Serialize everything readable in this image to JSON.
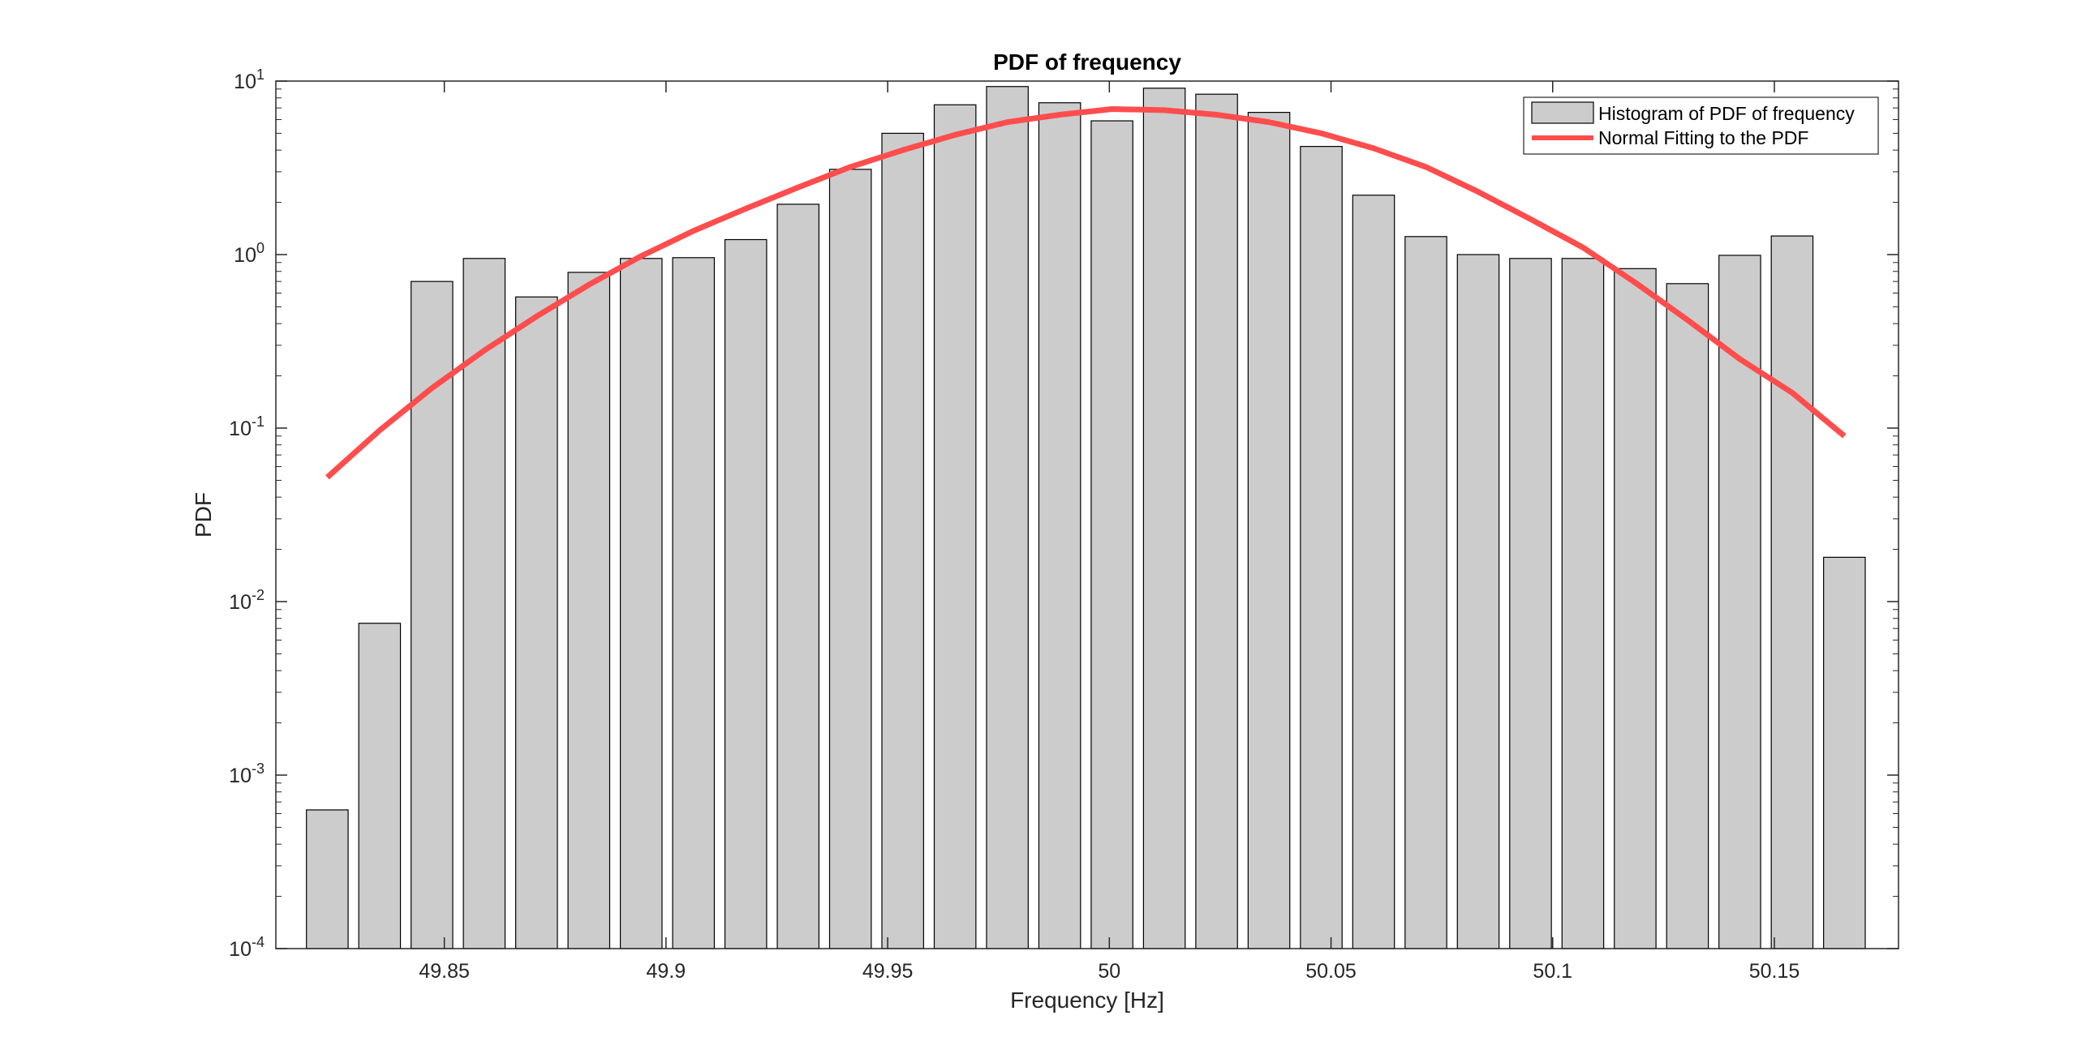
{
  "chart_data": {
    "type": "bar",
    "title": "PDF of frequency",
    "xlabel": "Frequency [Hz]",
    "ylabel": "PDF",
    "yscale": "log",
    "ylim": [
      0.0001,
      10
    ],
    "xlim": [
      49.812,
      50.178
    ],
    "grid": false,
    "legend_position": "top-right",
    "y_ticks": [
      {
        "value": 0.0001,
        "base": "10",
        "exp": "-4"
      },
      {
        "value": 0.001,
        "base": "10",
        "exp": "-3"
      },
      {
        "value": 0.01,
        "base": "10",
        "exp": "-2"
      },
      {
        "value": 0.1,
        "base": "10",
        "exp": "-1"
      },
      {
        "value": 1,
        "base": "10",
        "exp": "0"
      },
      {
        "value": 10,
        "base": "10",
        "exp": "1"
      }
    ],
    "x_ticks": [
      {
        "value": 49.85,
        "label": "49.85"
      },
      {
        "value": 49.9,
        "label": "49.9"
      },
      {
        "value": 49.95,
        "label": "49.95"
      },
      {
        "value": 50.0,
        "label": "50"
      },
      {
        "value": 50.05,
        "label": "50.05"
      },
      {
        "value": 50.1,
        "label": "50.1"
      },
      {
        "value": 50.15,
        "label": "50.15"
      }
    ],
    "bar_width": 0.0094,
    "colors": {
      "bars": "#cccccc",
      "bar_edge": "#000000",
      "fit": "#ff4d4d"
    },
    "series": [
      {
        "name": "Histogram of PDF of frequency",
        "type": "bar",
        "x": [
          49.8236,
          49.8354,
          49.8472,
          49.859,
          49.8708,
          49.8826,
          49.8944,
          49.9062,
          49.918,
          49.9298,
          49.9416,
          49.9534,
          49.9652,
          49.977,
          49.9888,
          50.0006,
          50.0124,
          50.0242,
          50.036,
          50.0478,
          50.0596,
          50.0714,
          50.0832,
          50.095,
          50.1068,
          50.1186,
          50.1304,
          50.1422,
          50.154,
          50.1658
        ],
        "values": [
          0.00063,
          0.0075,
          0.7,
          0.95,
          0.57,
          0.79,
          0.95,
          0.96,
          1.22,
          1.95,
          3.1,
          5.0,
          7.3,
          9.3,
          7.5,
          5.9,
          9.1,
          8.4,
          6.6,
          4.2,
          2.2,
          1.27,
          1.0,
          0.95,
          0.95,
          0.83,
          0.68,
          0.99,
          1.28,
          0.018
        ]
      },
      {
        "name": "Normal Fitting to the PDF",
        "type": "line",
        "x": [
          49.8236,
          49.8354,
          49.8472,
          49.859,
          49.8708,
          49.8826,
          49.8944,
          49.9062,
          49.918,
          49.9298,
          49.9416,
          49.9534,
          49.9652,
          49.977,
          49.9888,
          50.0006,
          50.0124,
          50.0242,
          50.036,
          50.0478,
          50.0596,
          50.0714,
          50.0832,
          50.095,
          50.1068,
          50.1186,
          50.1304,
          50.1422,
          50.154,
          50.1658
        ],
        "values": [
          0.052,
          0.097,
          0.17,
          0.28,
          0.44,
          0.67,
          0.98,
          1.37,
          1.84,
          2.44,
          3.2,
          4.0,
          4.9,
          5.8,
          6.4,
          6.9,
          6.8,
          6.4,
          5.8,
          5.0,
          4.1,
          3.2,
          2.3,
          1.6,
          1.1,
          0.69,
          0.42,
          0.25,
          0.16,
          0.09
        ]
      }
    ]
  }
}
